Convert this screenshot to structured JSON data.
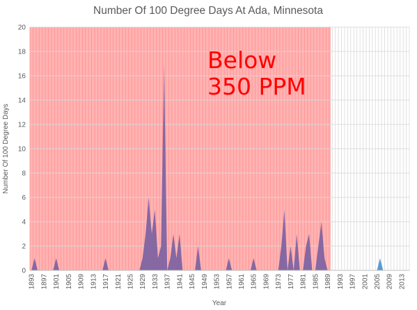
{
  "chart_data": {
    "type": "area",
    "title": "Number Of 100 Degree Days At Ada, Minnesota",
    "xlabel": "Year",
    "ylabel": "Number Of 100 Degree Days",
    "xlim": [
      1893,
      2015
    ],
    "ylim": [
      0,
      20
    ],
    "y_ticks": [
      0,
      2,
      4,
      6,
      8,
      10,
      12,
      14,
      16,
      18,
      20
    ],
    "x_tick_start": 1893,
    "x_tick_step": 4,
    "x_tick_end": 2013,
    "grid": true,
    "annotation": [
      "Below",
      "350 PPM"
    ],
    "shaded_region": {
      "from": 1893,
      "to": 1990,
      "color": "#ffb3b3"
    },
    "colors": {
      "below_area": "#8064a2",
      "after_area": "#5b9bd5",
      "gridline": "#d9d9d9",
      "annotation": "#ff0000"
    },
    "x": [
      1893,
      1894,
      1895,
      1896,
      1897,
      1898,
      1899,
      1900,
      1901,
      1902,
      1903,
      1904,
      1905,
      1906,
      1907,
      1908,
      1909,
      1910,
      1911,
      1912,
      1913,
      1914,
      1915,
      1916,
      1917,
      1918,
      1919,
      1920,
      1921,
      1922,
      1923,
      1924,
      1925,
      1926,
      1927,
      1928,
      1929,
      1930,
      1931,
      1932,
      1933,
      1934,
      1935,
      1936,
      1937,
      1938,
      1939,
      1940,
      1941,
      1942,
      1943,
      1944,
      1945,
      1946,
      1947,
      1948,
      1949,
      1950,
      1951,
      1952,
      1953,
      1954,
      1955,
      1956,
      1957,
      1958,
      1959,
      1960,
      1961,
      1962,
      1963,
      1964,
      1965,
      1966,
      1967,
      1968,
      1969,
      1970,
      1971,
      1972,
      1973,
      1974,
      1975,
      1976,
      1977,
      1978,
      1979,
      1980,
      1981,
      1982,
      1983,
      1984,
      1985,
      1986,
      1987,
      1988,
      1989,
      1990,
      1991,
      1992,
      1993,
      1994,
      1995,
      1996,
      1997,
      1998,
      1999,
      2000,
      2001,
      2002,
      2003,
      2004,
      2005,
      2006,
      2007,
      2008,
      2009,
      2010,
      2011,
      2012,
      2013,
      2014,
      2015
    ],
    "series": [
      {
        "values": [
          0,
          1,
          0,
          0,
          0,
          0,
          0,
          0,
          1,
          0,
          0,
          0,
          0,
          0,
          0,
          0,
          0,
          0,
          0,
          0,
          0,
          0,
          0,
          0,
          1,
          0,
          0,
          0,
          0,
          0,
          0,
          0,
          0,
          0,
          0,
          0,
          1,
          3,
          6,
          3,
          5,
          1,
          2,
          17,
          0,
          1,
          3,
          1,
          3,
          0,
          0,
          0,
          0,
          0,
          2,
          0,
          0,
          0,
          0,
          0,
          0,
          0,
          0,
          0,
          1,
          0,
          0,
          0,
          0,
          0,
          0,
          0,
          1,
          0,
          0,
          0,
          0,
          0,
          0,
          0,
          0,
          2,
          5,
          0,
          2,
          0,
          3,
          0,
          0,
          2,
          3,
          0,
          0,
          2,
          4,
          1,
          0,
          0,
          0,
          0,
          0,
          0,
          0,
          0,
          0,
          0,
          0,
          0,
          0,
          0,
          0,
          0,
          0,
          1,
          0,
          0,
          0,
          0,
          0,
          0,
          0,
          0,
          0
        ]
      }
    ]
  }
}
